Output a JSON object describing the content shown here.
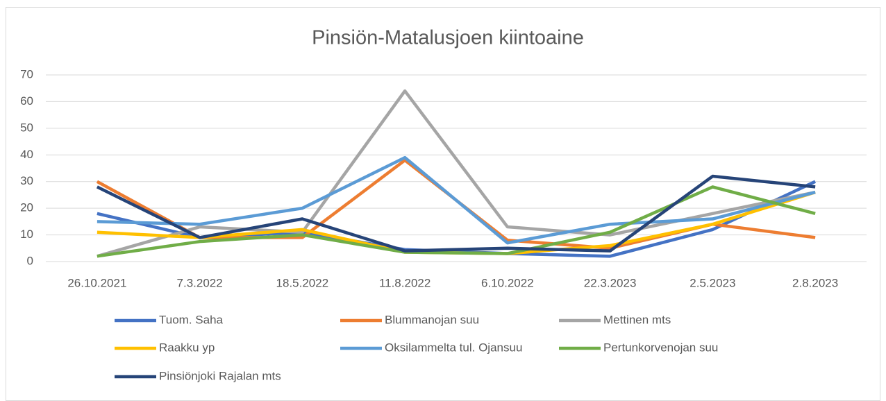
{
  "chart_data": {
    "type": "line",
    "title": "Pinsiön-Matalusjoen kiintoaine",
    "categories": [
      "26.10.2021",
      "7.3.2022",
      "18.5.2022",
      "11.8.2022",
      "6.10.2022",
      "22.3.2023",
      "2.5.2023",
      "2.8.2023"
    ],
    "series": [
      {
        "name": "Tuom. Saha",
        "color": "#4472c4",
        "values": [
          18,
          9,
          11,
          4.5,
          3,
          2,
          12,
          30
        ]
      },
      {
        "name": "Blummanojan suu",
        "color": "#ed7d31",
        "values": [
          30,
          9,
          9,
          38,
          8,
          5,
          14,
          9
        ]
      },
      {
        "name": "Mettinen mts",
        "color": "#a5a5a5",
        "values": [
          2,
          13,
          11,
          64,
          13,
          10,
          18,
          26
        ]
      },
      {
        "name": "Raakku yp",
        "color": "#ffc000",
        "values": [
          11,
          9,
          12,
          3.5,
          3,
          6,
          14,
          26
        ]
      },
      {
        "name": "Oksilammelta tul. Ojansuu",
        "color": "#5b9bd5",
        "values": [
          15,
          14,
          20,
          39,
          7,
          14,
          16,
          26
        ]
      },
      {
        "name": "Pertunkorvenojan suu",
        "color": "#70ad47",
        "values": [
          2,
          7.5,
          10,
          3.5,
          3,
          11,
          28,
          18
        ]
      },
      {
        "name": "Pinsiönjoki Rajalan mts",
        "color": "#264478",
        "values": [
          28,
          9,
          16,
          4,
          5,
          4,
          32,
          28
        ]
      }
    ],
    "ylim": [
      0,
      70
    ],
    "yticks": [
      0,
      10,
      20,
      30,
      40,
      50,
      60,
      70
    ],
    "grid": true,
    "legend": "bottom"
  }
}
